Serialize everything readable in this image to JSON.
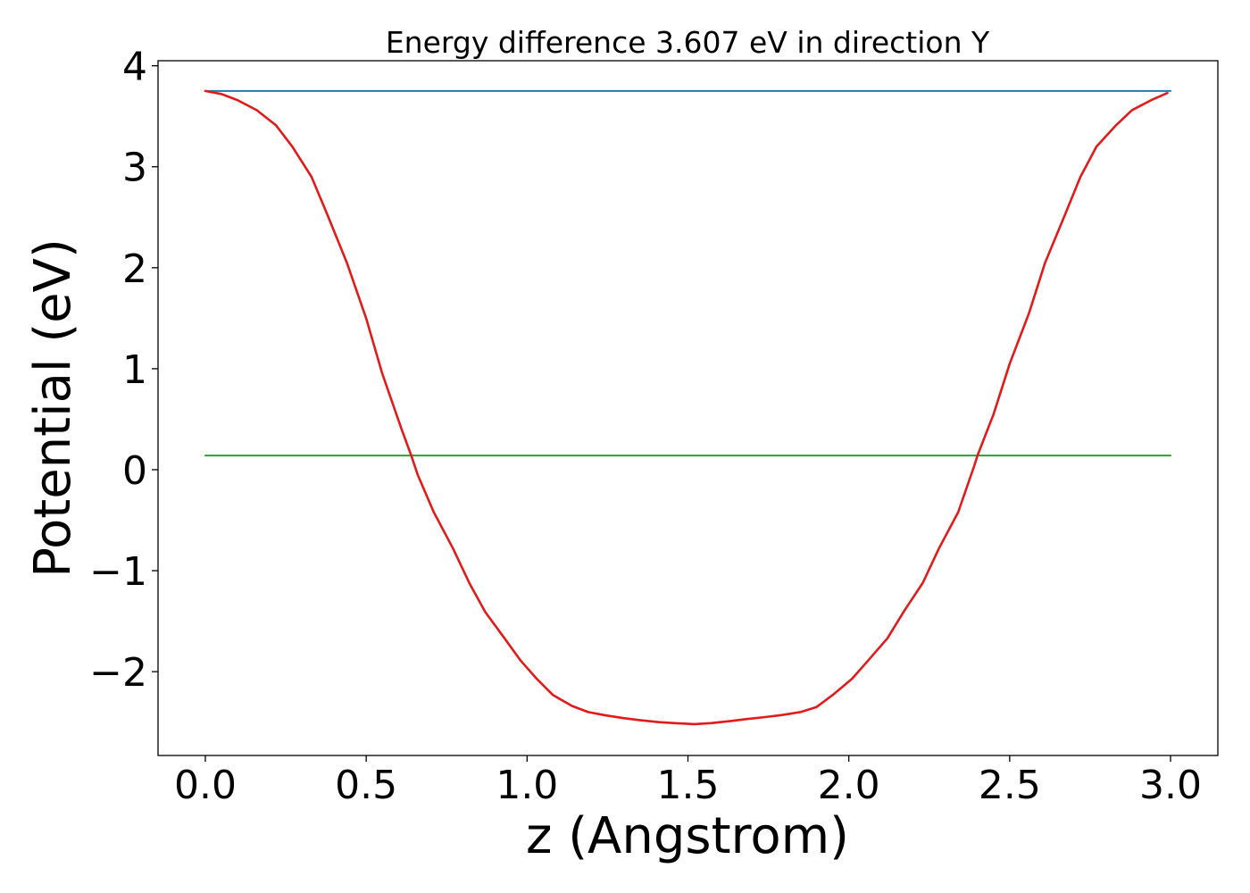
{
  "chart_data": {
    "type": "line",
    "title": "Energy difference 3.607 eV in direction Y",
    "xlabel": "z (Angstrom)",
    "ylabel": "Potential (eV)",
    "xlim": [
      -0.147,
      3.147
    ],
    "ylim": [
      -2.83,
      4.05
    ],
    "xticks": [
      0.0,
      0.5,
      1.0,
      1.5,
      2.0,
      2.5,
      3.0
    ],
    "xtick_labels": [
      "0.0",
      "0.5",
      "1.0",
      "1.5",
      "2.0",
      "2.5",
      "3.0"
    ],
    "yticks": [
      -2,
      -1,
      0,
      1,
      2,
      3,
      4
    ],
    "ytick_labels": [
      "−2",
      "−1",
      "0",
      "1",
      "2",
      "3",
      "4"
    ],
    "grid": false,
    "legend": false,
    "series": [
      {
        "color": "#1f77b4",
        "x": [
          0.0,
          3.0
        ],
        "y": [
          3.75,
          3.75
        ]
      },
      {
        "color": "#2ca02c",
        "x": [
          0.0,
          3.0
        ],
        "y": [
          0.14,
          0.14
        ]
      },
      {
        "color": "#e31a1c",
        "x": [
          0.0,
          0.05,
          0.1,
          0.16,
          0.22,
          0.27,
          0.33,
          0.38,
          0.44,
          0.5,
          0.55,
          0.61,
          0.64,
          0.66,
          0.71,
          0.77,
          0.82,
          0.87,
          0.93,
          0.98,
          1.03,
          1.08,
          1.14,
          1.19,
          1.24,
          1.3,
          1.35,
          1.41,
          1.46,
          1.52,
          1.57,
          1.63,
          1.68,
          1.74,
          1.79,
          1.85,
          1.9,
          1.95,
          2.01,
          2.06,
          2.12,
          2.17,
          2.23,
          2.28,
          2.34,
          2.39,
          2.4,
          2.45,
          2.5,
          2.56,
          2.61,
          2.67,
          2.72,
          2.77,
          2.83,
          2.88,
          2.94,
          2.99
        ],
        "y": [
          3.75,
          3.72,
          3.66,
          3.56,
          3.41,
          3.2,
          2.9,
          2.52,
          2.05,
          1.5,
          0.95,
          0.4,
          0.14,
          -0.05,
          -0.42,
          -0.78,
          -1.12,
          -1.41,
          -1.67,
          -1.89,
          -2.07,
          -2.23,
          -2.34,
          -2.4,
          -2.43,
          -2.46,
          -2.48,
          -2.5,
          -2.51,
          -2.52,
          -2.51,
          -2.49,
          -2.47,
          -2.45,
          -2.43,
          -2.4,
          -2.35,
          -2.23,
          -2.07,
          -1.89,
          -1.67,
          -1.41,
          -1.12,
          -0.78,
          -0.42,
          0.04,
          0.14,
          0.55,
          1.05,
          1.55,
          2.05,
          2.51,
          2.9,
          3.2,
          3.41,
          3.56,
          3.66,
          3.73
        ]
      }
    ]
  }
}
